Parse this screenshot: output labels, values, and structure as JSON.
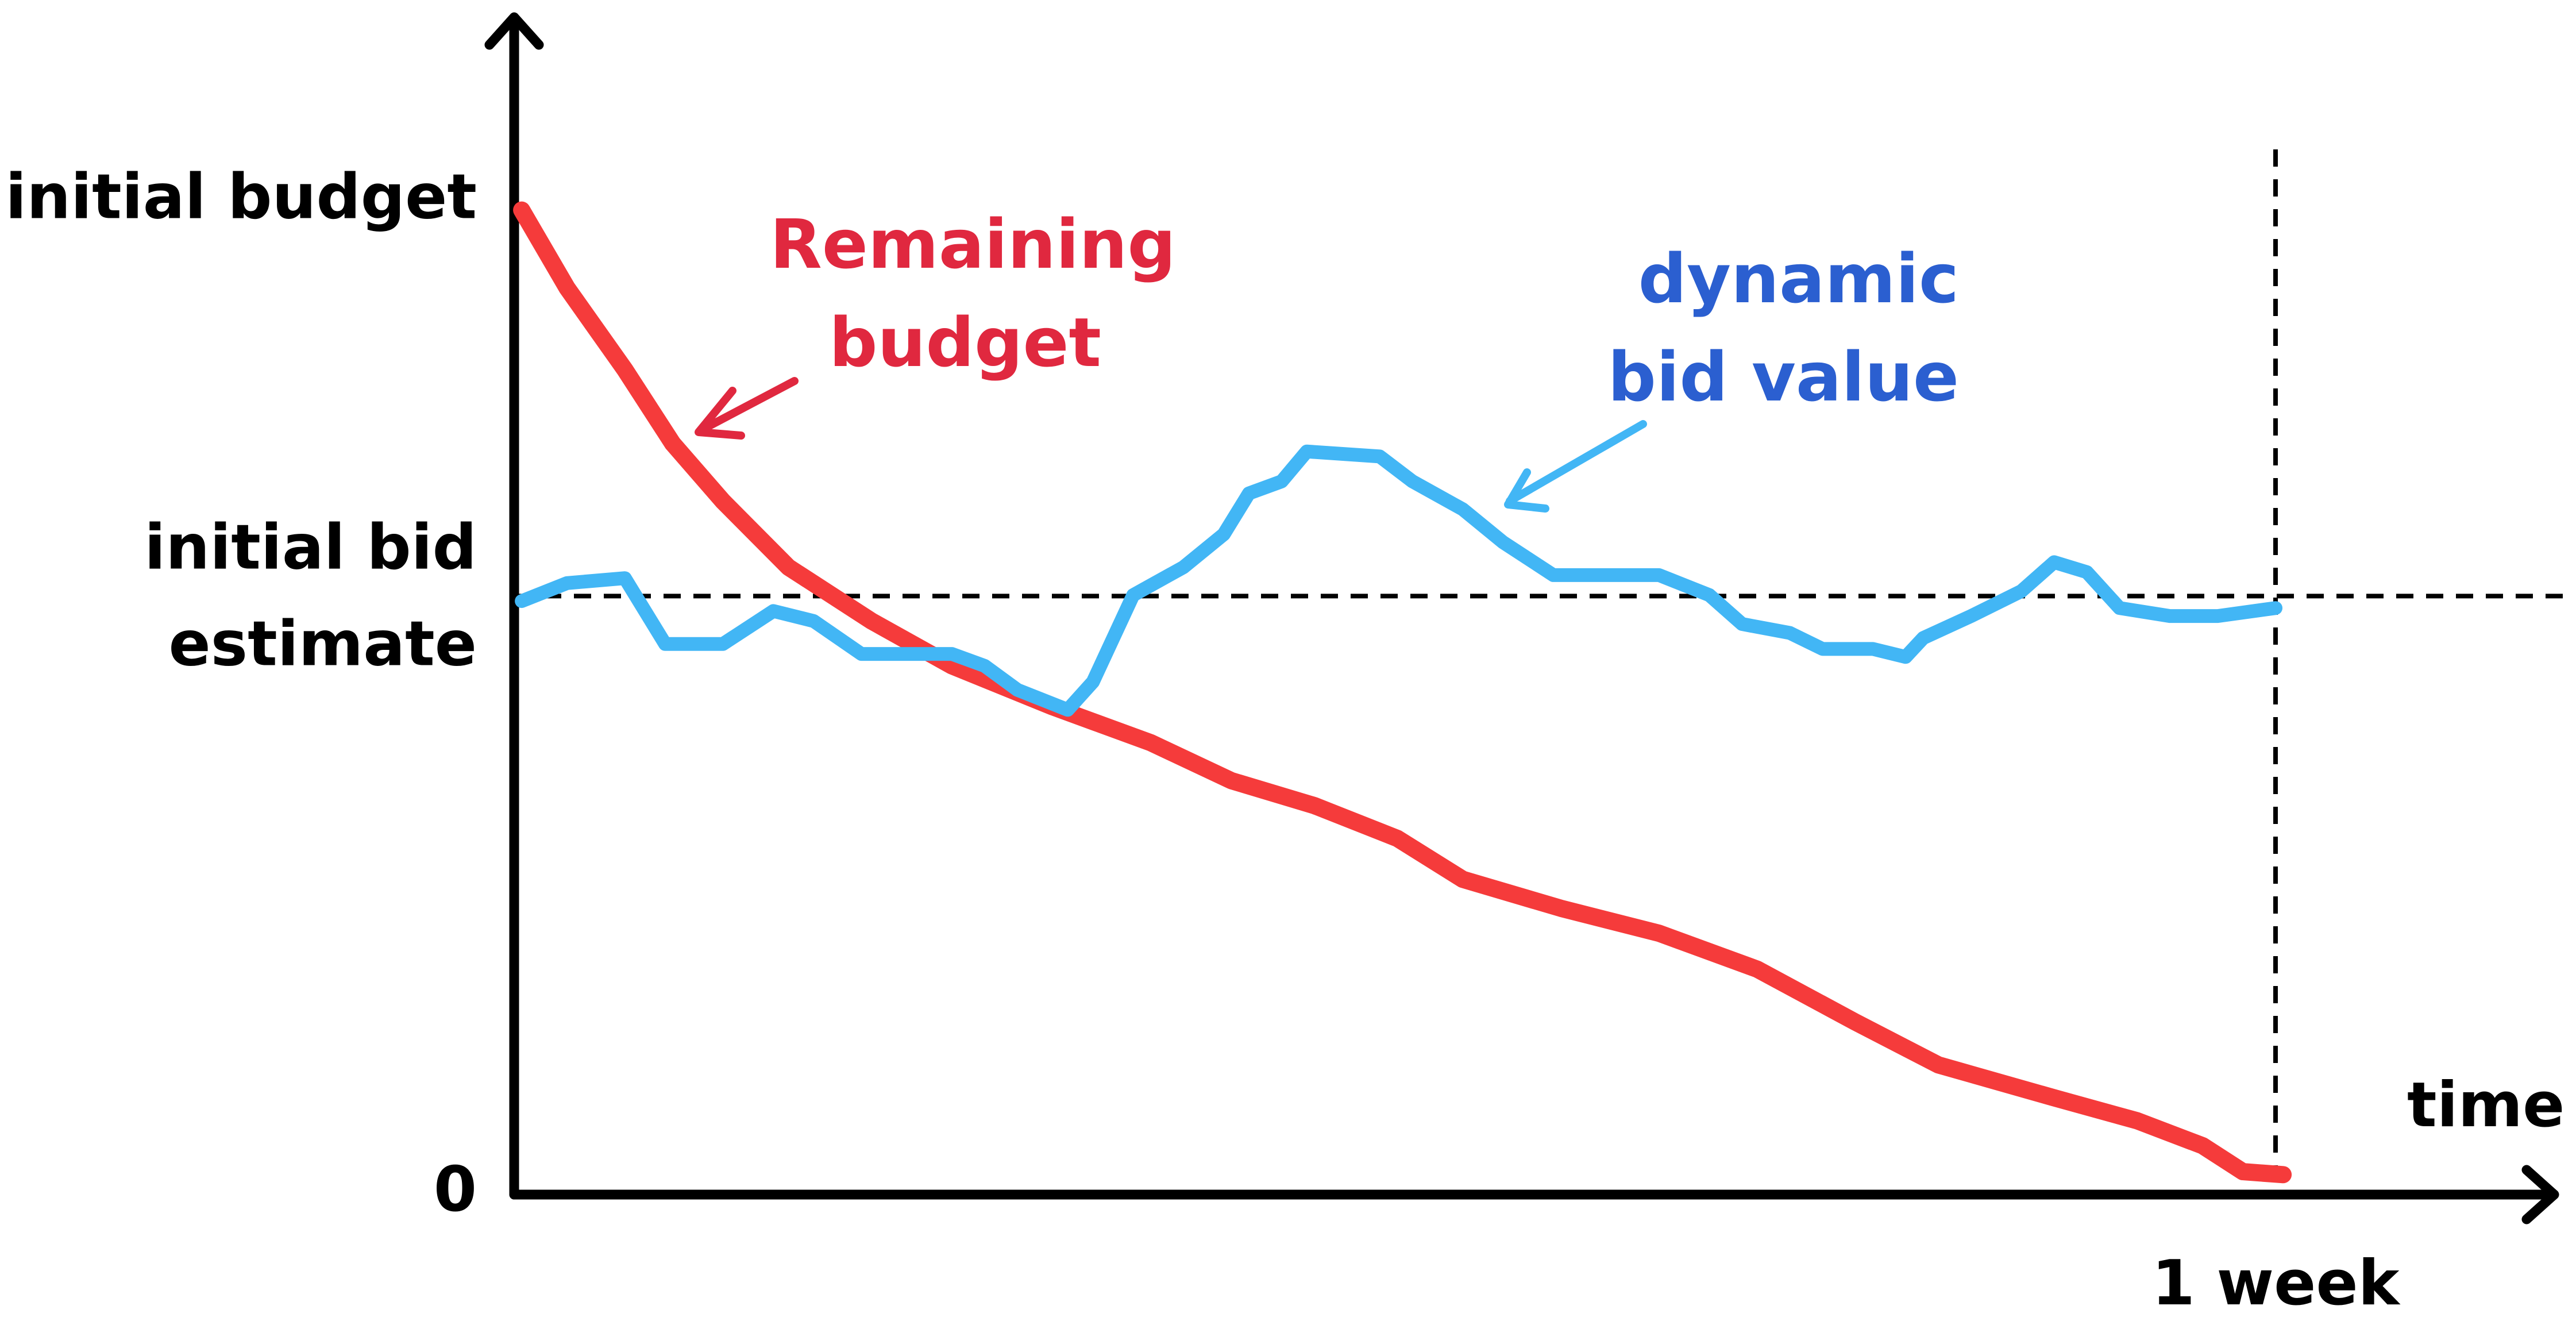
{
  "chart_data": {
    "type": "line",
    "xlabel": "time",
    "xlim": [
      0,
      8.1
    ],
    "ylim": [
      0,
      118
    ],
    "xticks": [
      {
        "value": 7,
        "label": "1 week"
      }
    ],
    "yticks": [
      {
        "value": 0,
        "label": "0"
      },
      {
        "value": 60,
        "label": "initial bid estimate"
      },
      {
        "value": 100,
        "label": "initial budget"
      }
    ],
    "grid": "dashed",
    "series": [
      {
        "name": "Remaining budget",
        "color": "#f53b3b",
        "text_color": "#e0283f",
        "x": [
          0.03,
          0.21,
          0.44,
          0.63,
          0.83,
          1.09,
          1.42,
          1.74,
          2.14,
          2.53,
          2.85,
          3.18,
          3.51,
          3.77,
          4.16,
          4.55,
          4.94,
          5.33,
          5.66,
          6.12,
          6.45,
          6.71,
          6.87,
          7.03
        ],
        "values": [
          98.7,
          90.9,
          82.7,
          75.3,
          69.5,
          62.9,
          57.5,
          53.0,
          48.9,
          45.3,
          41.5,
          39.0,
          35.7,
          31.6,
          28.7,
          26.2,
          22.6,
          17.3,
          13.0,
          9.7,
          7.4,
          4.9,
          2.3,
          2.0
        ]
      },
      {
        "name": "dynamic bid value",
        "color": "#42b6f5",
        "text_color": "#2b5fd0",
        "x": [
          0.03,
          0.21,
          0.44,
          0.6,
          0.83,
          1.03,
          1.19,
          1.38,
          1.74,
          1.87,
          2.0,
          2.2,
          2.3,
          2.46,
          2.66,
          2.82,
          2.92,
          3.05,
          3.15,
          3.44,
          3.57,
          3.77,
          3.93,
          4.13,
          4.55,
          4.75,
          4.88,
          5.07,
          5.2,
          5.4,
          5.53,
          5.6,
          5.79,
          5.99,
          6.12,
          6.25,
          6.38,
          6.58,
          6.77,
          7.0
        ],
        "values": [
          59.5,
          61.3,
          61.8,
          55.2,
          55.2,
          58.5,
          57.5,
          54.2,
          54.2,
          53.0,
          50.6,
          48.6,
          51.4,
          60.1,
          62.9,
          66.2,
          70.3,
          71.5,
          74.5,
          74.0,
          71.5,
          68.7,
          65.4,
          62.1,
          62.1,
          60.1,
          57.2,
          56.3,
          54.7,
          54.7,
          53.9,
          55.8,
          58.0,
          60.5,
          63.4,
          62.4,
          58.8,
          58.0,
          58.0,
          58.8
        ]
      }
    ]
  }
}
